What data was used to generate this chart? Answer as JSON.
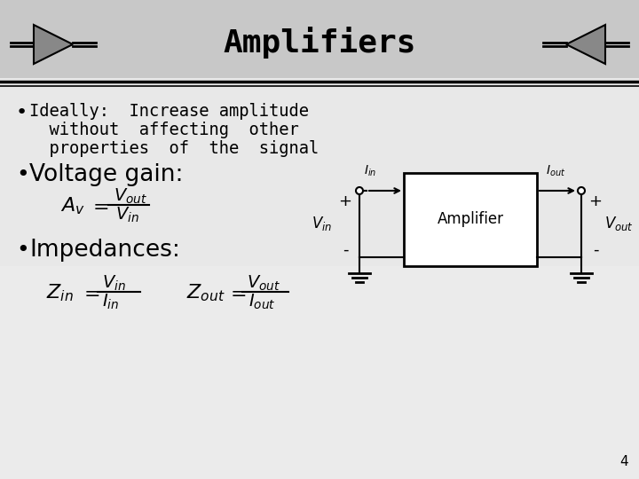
{
  "title": "Amplifiers",
  "slide_bg": "#e4e4e4",
  "title_bar_bg": "#c8c8c8",
  "bullet1_line1": "Ideally:  Increase amplitude",
  "bullet1_line2": "  without  affecting  other",
  "bullet1_line3": "  properties  of  the  signal",
  "bullet2": "Voltage gain:",
  "bullet3": "Impedances:",
  "page_num": "4",
  "amplifier_label": "Amplifier"
}
